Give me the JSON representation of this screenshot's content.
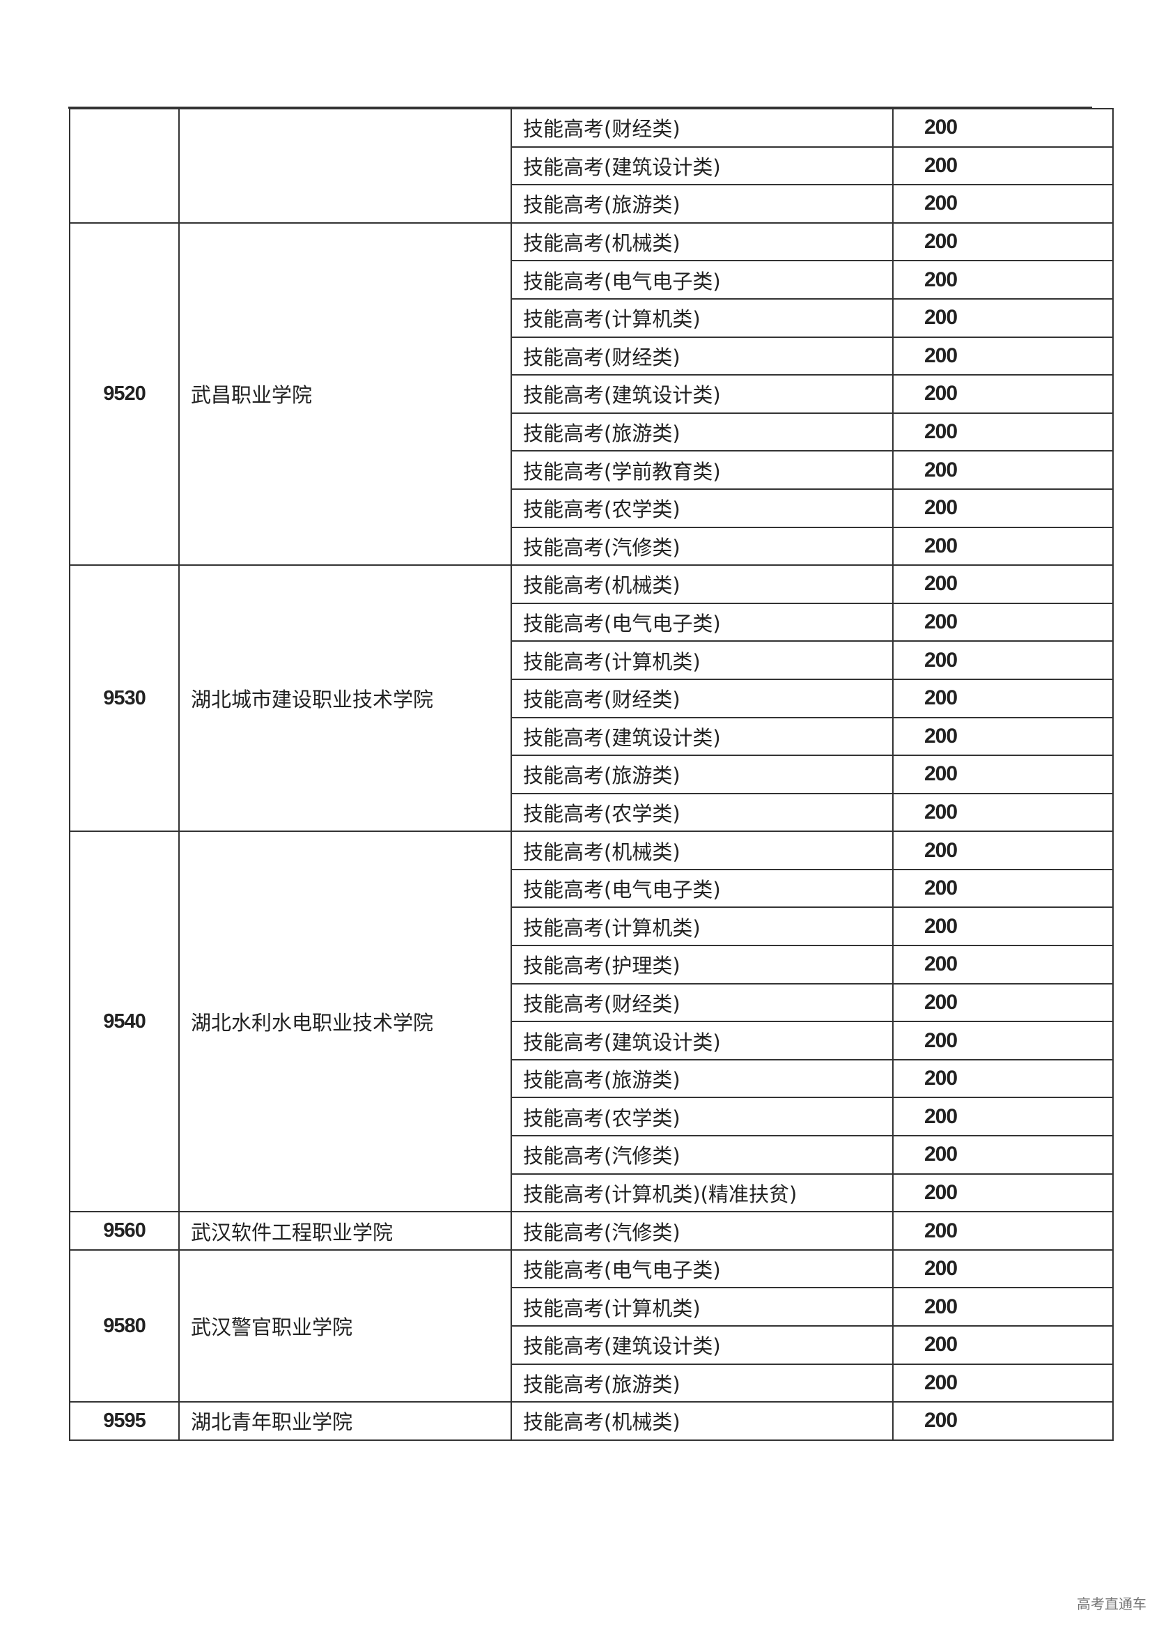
{
  "watermark": "高考直通车",
  "groups": [
    {
      "code": "",
      "school": "",
      "majors": [
        {
          "name": "技能高考(财经类)",
          "plan": "200"
        },
        {
          "name": "技能高考(建筑设计类)",
          "plan": "200"
        },
        {
          "name": "技能高考(旅游类)",
          "plan": "200"
        }
      ]
    },
    {
      "code": "9520",
      "school": "武昌职业学院",
      "majors": [
        {
          "name": "技能高考(机械类)",
          "plan": "200"
        },
        {
          "name": "技能高考(电气电子类)",
          "plan": "200"
        },
        {
          "name": "技能高考(计算机类)",
          "plan": "200"
        },
        {
          "name": "技能高考(财经类)",
          "plan": "200"
        },
        {
          "name": "技能高考(建筑设计类)",
          "plan": "200"
        },
        {
          "name": "技能高考(旅游类)",
          "plan": "200"
        },
        {
          "name": "技能高考(学前教育类)",
          "plan": "200"
        },
        {
          "name": "技能高考(农学类)",
          "plan": "200"
        },
        {
          "name": "技能高考(汽修类)",
          "plan": "200"
        }
      ]
    },
    {
      "code": "9530",
      "school": "湖北城市建设职业技术学院",
      "majors": [
        {
          "name": "技能高考(机械类)",
          "plan": "200"
        },
        {
          "name": "技能高考(电气电子类)",
          "plan": "200"
        },
        {
          "name": "技能高考(计算机类)",
          "plan": "200"
        },
        {
          "name": "技能高考(财经类)",
          "plan": "200"
        },
        {
          "name": "技能高考(建筑设计类)",
          "plan": "200"
        },
        {
          "name": "技能高考(旅游类)",
          "plan": "200"
        },
        {
          "name": "技能高考(农学类)",
          "plan": "200"
        }
      ]
    },
    {
      "code": "9540",
      "school": "湖北水利水电职业技术学院",
      "majors": [
        {
          "name": "技能高考(机械类)",
          "plan": "200"
        },
        {
          "name": "技能高考(电气电子类)",
          "plan": "200"
        },
        {
          "name": "技能高考(计算机类)",
          "plan": "200"
        },
        {
          "name": "技能高考(护理类)",
          "plan": "200"
        },
        {
          "name": "技能高考(财经类)",
          "plan": "200"
        },
        {
          "name": "技能高考(建筑设计类)",
          "plan": "200"
        },
        {
          "name": "技能高考(旅游类)",
          "plan": "200"
        },
        {
          "name": "技能高考(农学类)",
          "plan": "200"
        },
        {
          "name": "技能高考(汽修类)",
          "plan": "200"
        },
        {
          "name": "技能高考(计算机类)(精准扶贫)",
          "plan": "200"
        }
      ]
    },
    {
      "code": "9560",
      "school": "武汉软件工程职业学院",
      "majors": [
        {
          "name": "技能高考(汽修类)",
          "plan": "200"
        }
      ]
    },
    {
      "code": "9580",
      "school": "武汉警官职业学院",
      "majors": [
        {
          "name": "技能高考(电气电子类)",
          "plan": "200"
        },
        {
          "name": "技能高考(计算机类)",
          "plan": "200"
        },
        {
          "name": "技能高考(建筑设计类)",
          "plan": "200"
        },
        {
          "name": "技能高考(旅游类)",
          "plan": "200"
        }
      ]
    },
    {
      "code": "9595",
      "school": "湖北青年职业学院",
      "majors": [
        {
          "name": "技能高考(机械类)",
          "plan": "200"
        }
      ]
    }
  ]
}
